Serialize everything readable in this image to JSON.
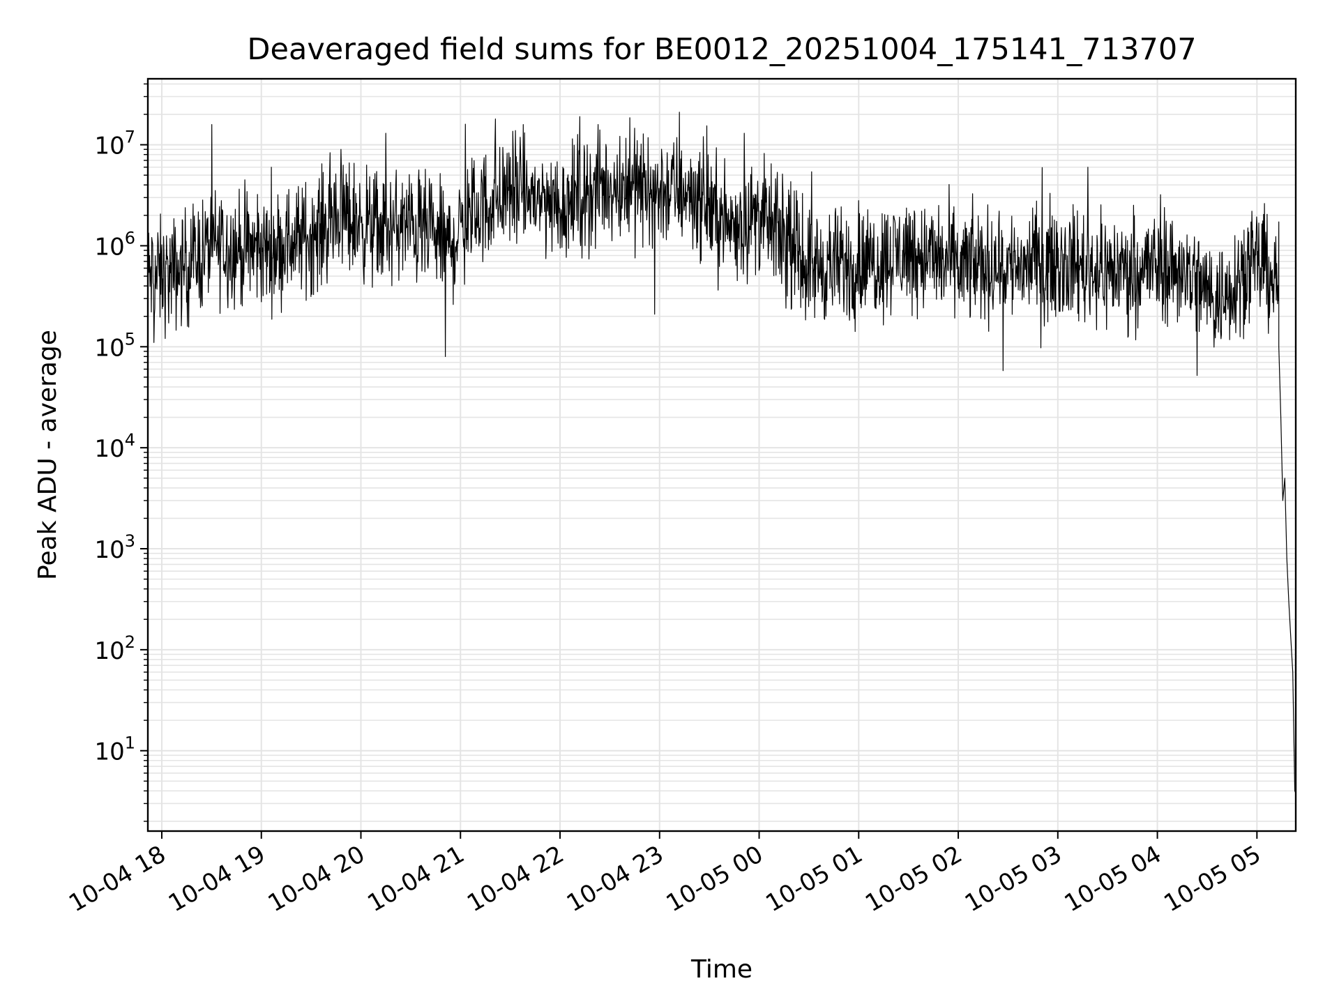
{
  "chart_data": {
    "type": "line",
    "title": "Deaveraged field sums for BE0012_20251004_175141_713707",
    "xlabel": "Time",
    "ylabel": "Peak ADU - average",
    "yscale": "log",
    "ylim": [
      1.6,
      45000000
    ],
    "xlim_hours_from_1004_17": [
      0.86,
      12.39
    ],
    "grid": true,
    "x_tick_labels": [
      "10-04 18",
      "10-04 19",
      "10-04 20",
      "10-04 21",
      "10-04 22",
      "10-04 23",
      "10-05 00",
      "10-05 01",
      "10-05 02",
      "10-05 03",
      "10-05 04",
      "10-05 05"
    ],
    "x_tick_hours_from_1004_17": [
      1,
      2,
      3,
      4,
      5,
      6,
      7,
      8,
      9,
      10,
      11,
      12
    ],
    "y_ticks": [
      {
        "base": "10",
        "exp": "1",
        "value": 10
      },
      {
        "base": "10",
        "exp": "2",
        "value": 100
      },
      {
        "base": "10",
        "exp": "3",
        "value": 1000
      },
      {
        "base": "10",
        "exp": "4",
        "value": 10000
      },
      {
        "base": "10",
        "exp": "5",
        "value": 100000
      },
      {
        "base": "10",
        "exp": "6",
        "value": 1000000
      },
      {
        "base": "10",
        "exp": "7",
        "value": 10000000
      }
    ],
    "series": [
      {
        "name": "field sums",
        "color": "#000000",
        "envelope_hours": [
          0.86,
          1.1,
          1.5,
          2.0,
          2.5,
          2.8,
          3.2,
          3.5,
          3.9,
          4.1,
          4.5,
          5.0,
          5.5,
          6.0,
          6.3,
          6.7,
          7.0,
          7.5,
          8.0,
          8.5,
          9.0,
          9.5,
          10.0,
          10.5,
          11.0,
          11.3,
          11.6,
          11.9,
          12.1,
          12.2
        ],
        "envelope_log10": [
          5.7,
          5.7,
          6.0,
          5.95,
          6.1,
          6.3,
          6.15,
          6.2,
          6.0,
          6.3,
          6.55,
          6.4,
          6.6,
          6.55,
          6.55,
          6.2,
          6.3,
          5.8,
          5.8,
          5.95,
          5.8,
          5.8,
          5.85,
          5.75,
          5.8,
          5.75,
          5.45,
          5.8,
          5.8,
          5.6
        ],
        "spread_log10": 0.5,
        "tail_hours": [
          12.22,
          12.24,
          12.26,
          12.28,
          12.3,
          12.32,
          12.34,
          12.36,
          12.38,
          12.39
        ],
        "tail_values": [
          100000,
          20000,
          3000,
          5000,
          800,
          300,
          130,
          60,
          4,
          3.8
        ],
        "spikes": [
          {
            "hour": 1.6,
            "value": 2800000
          },
          {
            "hour": 2.1,
            "value": 6000000
          },
          {
            "hour": 2.8,
            "value": 9000000
          },
          {
            "hour": 3.25,
            "value": 13000000
          },
          {
            "hour": 4.05,
            "value": 16000000
          },
          {
            "hour": 4.35,
            "value": 18000000
          },
          {
            "hour": 5.2,
            "value": 19000000
          },
          {
            "hour": 5.7,
            "value": 18500000
          },
          {
            "hour": 6.2,
            "value": 21000000
          },
          {
            "hour": 6.85,
            "value": 13000000
          },
          {
            "hour": 8.0,
            "value": 2800000
          },
          {
            "hour": 10.3,
            "value": 6000000
          },
          {
            "hour": 11.4,
            "value": 2300000
          },
          {
            "hour": 11.95,
            "value": 2200000
          },
          {
            "hour": 3.85,
            "value": 80000
          },
          {
            "hour": 9.45,
            "value": 58000
          },
          {
            "hour": 11.4,
            "value": 52000
          },
          {
            "hour": 0.92,
            "value": 110000
          },
          {
            "hour": 5.95,
            "value": 210000
          }
        ]
      }
    ]
  }
}
